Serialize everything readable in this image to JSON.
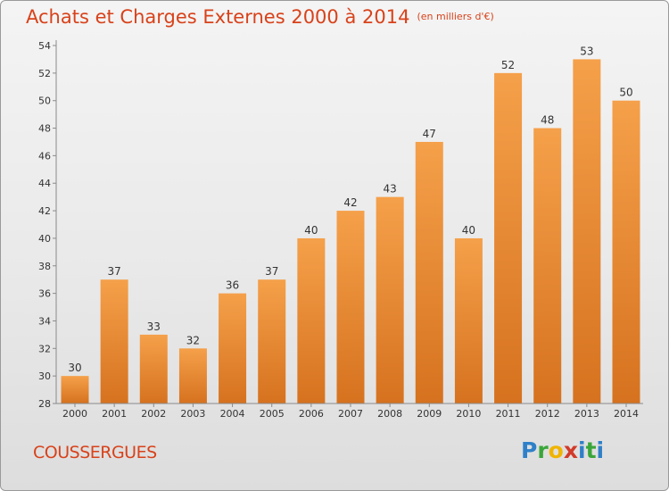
{
  "chart_data": {
    "type": "bar",
    "title": "Achats et Charges Externes 2000 à 2014",
    "subtitle": "(en milliers d'€)",
    "categories": [
      "2000",
      "2001",
      "2002",
      "2003",
      "2004",
      "2005",
      "2006",
      "2007",
      "2008",
      "2009",
      "2010",
      "2011",
      "2012",
      "2013",
      "2014"
    ],
    "values": [
      30,
      37,
      33,
      32,
      36,
      37,
      40,
      42,
      43,
      47,
      40,
      52,
      48,
      53,
      50
    ],
    "ylim": [
      28,
      54
    ],
    "yticks": [
      28,
      30,
      32,
      34,
      36,
      38,
      40,
      42,
      44,
      46,
      48,
      50,
      52,
      54
    ],
    "grid": false,
    "bar_color": "#f5a04a",
    "bar_color_dark": "#d6721f"
  },
  "footer": {
    "location": "COUSSERGUES",
    "logo_letters": [
      {
        "ch": "P",
        "color": "#2f80c8"
      },
      {
        "ch": "r",
        "color": "#3aa63a"
      },
      {
        "ch": "o",
        "color": "#f0b400"
      },
      {
        "ch": "x",
        "color": "#d23a2a"
      },
      {
        "ch": "i",
        "color": "#2f80c8"
      },
      {
        "ch": "t",
        "color": "#3aa63a"
      },
      {
        "ch": "i",
        "color": "#2f80c8"
      }
    ]
  }
}
